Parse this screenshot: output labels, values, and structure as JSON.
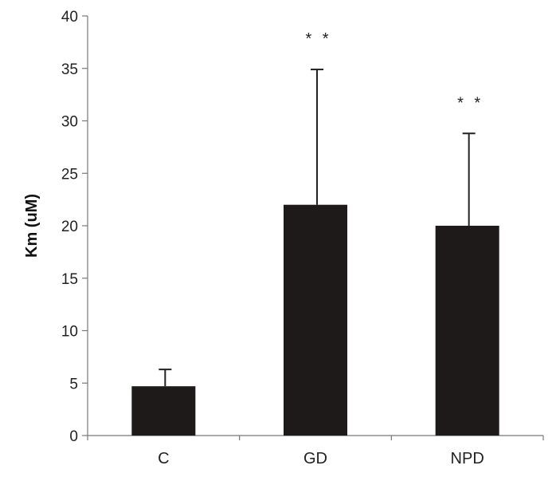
{
  "chart_data": {
    "type": "bar",
    "title": "",
    "xlabel": "",
    "ylabel": "Km (uM)",
    "ylim": [
      0,
      40
    ],
    "yticks": [
      0,
      5,
      10,
      15,
      20,
      25,
      30,
      35,
      40
    ],
    "categories": [
      "C",
      "GD",
      "NPD"
    ],
    "values": [
      4.7,
      22.0,
      20.0
    ],
    "error_upper": [
      6.3,
      34.9,
      28.8
    ],
    "annotations": [
      "",
      "* *",
      "* *"
    ],
    "colors": {
      "bar": "#1f1a1a"
    },
    "grid": false,
    "legend": "none"
  }
}
